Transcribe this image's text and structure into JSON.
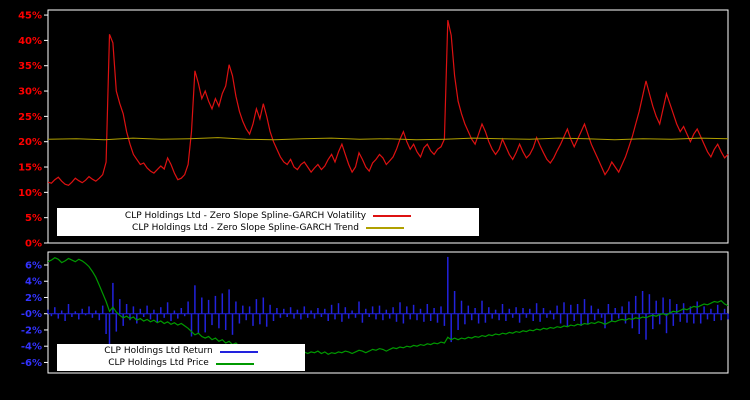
{
  "colors": {
    "background": "#000000",
    "frame": "#ffffff",
    "legend_background": "#ffffff",
    "legend_text": "#000000"
  },
  "chart_data": [
    {
      "type": "line",
      "panel": "top",
      "title": "",
      "xlabel": "",
      "ylabel": "",
      "grid": false,
      "legend_position": "inside-bottom-left",
      "ylim": [
        0,
        46
      ],
      "tick_color": "#ff0000",
      "yticks": {
        "labels": [
          "45%",
          "40%",
          "35%",
          "30%",
          "25%",
          "20%",
          "15%",
          "10%",
          "5%",
          "0%"
        ],
        "values": [
          45,
          40,
          35,
          30,
          25,
          20,
          15,
          10,
          5,
          0
        ]
      },
      "series": [
        {
          "name": "CLP Holdings Ltd - Zero Slope Spline-GARCH Volatility",
          "color": "#dd1111",
          "values": [
            12.0,
            11.8,
            12.5,
            13.0,
            12.2,
            11.6,
            11.4,
            12.0,
            12.8,
            12.3,
            11.9,
            12.4,
            13.1,
            12.6,
            12.2,
            12.8,
            13.5,
            16.0,
            41.2,
            39.5,
            30.0,
            27.5,
            25.5,
            22.0,
            19.5,
            17.5,
            16.5,
            15.5,
            15.8,
            14.8,
            14.2,
            13.8,
            14.5,
            15.2,
            14.6,
            16.8,
            15.5,
            13.8,
            12.5,
            12.8,
            13.5,
            15.5,
            22.0,
            34.0,
            31.5,
            28.5,
            30.0,
            28.0,
            26.5,
            28.5,
            27.0,
            29.5,
            31.0,
            35.2,
            33.0,
            29.0,
            26.0,
            24.0,
            22.5,
            21.5,
            23.5,
            26.5,
            24.5,
            27.5,
            25.0,
            22.0,
            20.0,
            18.5,
            17.0,
            16.0,
            15.5,
            16.5,
            15.0,
            14.5,
            15.5,
            16.0,
            15.0,
            14.0,
            14.8,
            15.5,
            14.5,
            15.2,
            16.5,
            17.5,
            16.0,
            18.0,
            19.5,
            17.5,
            15.5,
            14.0,
            15.0,
            17.8,
            16.5,
            15.0,
            14.2,
            15.8,
            16.5,
            17.5,
            16.8,
            15.5,
            16.2,
            17.0,
            18.5,
            20.5,
            22.0,
            20.0,
            18.5,
            19.5,
            18.0,
            17.0,
            18.8,
            19.5,
            18.2,
            17.5,
            18.5,
            19.0,
            20.5,
            44.0,
            41.0,
            33.0,
            28.0,
            25.5,
            23.5,
            22.0,
            20.5,
            19.5,
            21.5,
            23.5,
            22.0,
            20.0,
            18.5,
            17.5,
            18.5,
            20.5,
            19.0,
            17.5,
            16.5,
            17.8,
            19.5,
            18.0,
            16.8,
            17.5,
            18.8,
            20.8,
            19.2,
            17.8,
            16.5,
            15.8,
            16.8,
            18.2,
            19.5,
            21.0,
            22.5,
            20.5,
            19.0,
            20.5,
            22.0,
            23.5,
            21.5,
            19.5,
            18.0,
            16.5,
            15.0,
            13.5,
            14.5,
            16.0,
            15.0,
            14.0,
            15.5,
            17.0,
            19.0,
            21.0,
            23.5,
            26.0,
            29.0,
            32.0,
            29.5,
            27.0,
            25.0,
            23.5,
            26.5,
            29.5,
            27.5,
            25.5,
            23.5,
            22.0,
            23.0,
            21.5,
            20.0,
            21.5,
            22.5,
            21.0,
            19.5,
            18.0,
            17.0,
            18.5,
            19.5,
            18.0,
            16.8,
            17.5
          ]
        },
        {
          "name": "CLP Holdings Ltd - Zero Slope Spline-GARCH Trend",
          "color": "#b0a000",
          "values": [
            20.5,
            20.6,
            20.4,
            20.7,
            20.5,
            20.6,
            20.8,
            20.5,
            20.4,
            20.6,
            20.7,
            20.5,
            20.6,
            20.4,
            20.5,
            20.7,
            20.6,
            20.5,
            20.7,
            20.6,
            20.4,
            20.6,
            20.5,
            20.7,
            20.6
          ]
        }
      ]
    },
    {
      "type": "bar",
      "panel": "bottom",
      "title": "",
      "xlabel": "",
      "ylabel": "",
      "grid": false,
      "legend_position": "inside-bottom-left",
      "ylim": [
        -7.3,
        7.6
      ],
      "tick_color": "#3333ff",
      "yticks": {
        "labels": [
          "6%",
          "4%",
          "2%",
          "-0%",
          "-2%",
          "-4%",
          "-6%"
        ],
        "values": [
          6,
          4,
          2,
          0,
          -2,
          -4,
          -6
        ]
      },
      "series": [
        {
          "name": "CLP Holdings Ltd Return",
          "render": "bar",
          "color": "#2222dd",
          "values": [
            0.5,
            -0.3,
            0.8,
            -0.6,
            0.4,
            -0.9,
            1.2,
            -0.4,
            0.3,
            -0.7,
            0.6,
            -0.2,
            0.9,
            -0.5,
            0.4,
            -0.8,
            1.0,
            -2.5,
            -5.2,
            3.8,
            -2.2,
            1.8,
            -1.5,
            1.2,
            -0.8,
            0.9,
            -1.2,
            0.6,
            -0.4,
            1.0,
            -0.7,
            0.5,
            -1.1,
            0.8,
            -0.5,
            1.4,
            -0.9,
            0.4,
            -0.6,
            0.7,
            -0.3,
            1.5,
            -2.8,
            3.5,
            -2.5,
            2.0,
            -2.3,
            1.7,
            -1.4,
            2.2,
            -1.8,
            2.5,
            -2.0,
            3.0,
            -2.6,
            1.5,
            -1.2,
            1.0,
            -0.8,
            0.9,
            -1.5,
            1.8,
            -1.3,
            2.0,
            -1.6,
            1.1,
            -0.9,
            0.7,
            -0.5,
            0.6,
            -0.4,
            0.8,
            -0.6,
            0.5,
            -0.7,
            0.9,
            -0.5,
            0.4,
            -0.6,
            0.7,
            -0.4,
            0.6,
            -0.9,
            1.1,
            -0.7,
            1.3,
            -1.0,
            0.8,
            -0.6,
            0.4,
            -0.5,
            1.5,
            -1.1,
            0.6,
            -0.4,
            0.9,
            -0.7,
            1.0,
            -0.8,
            0.5,
            -0.6,
            0.8,
            -1.0,
            1.4,
            -1.2,
            0.9,
            -0.7,
            1.1,
            -0.8,
            0.6,
            -1.0,
            1.2,
            -0.9,
            0.7,
            -1.1,
            0.9,
            -1.5,
            7.0,
            -3.5,
            2.8,
            -2.0,
            1.6,
            -1.3,
            1.0,
            -0.8,
            0.7,
            -1.2,
            1.6,
            -1.1,
            0.8,
            -0.6,
            0.5,
            -0.8,
            1.2,
            -0.9,
            0.6,
            -0.5,
            0.8,
            -1.1,
            0.7,
            -0.5,
            0.6,
            -0.9,
            1.3,
            -1.0,
            0.7,
            -0.5,
            0.4,
            -0.7,
            1.0,
            -1.2,
            1.4,
            -1.6,
            1.1,
            -0.9,
            1.2,
            -1.5,
            1.8,
            -1.3,
            1.0,
            -0.8,
            0.6,
            -0.5,
            -1.8,
            1.2,
            -0.9,
            0.7,
            -0.6,
            0.9,
            -1.2,
            1.5,
            -1.8,
            2.2,
            -2.5,
            2.8,
            -3.2,
            2.4,
            -1.9,
            1.6,
            -1.3,
            2.0,
            -2.4,
            1.8,
            -1.5,
            1.2,
            -1.0,
            1.3,
            -1.1,
            0.9,
            -1.2,
            1.5,
            -1.2,
            0.9,
            -0.7,
            0.6,
            -0.9,
            1.1,
            -0.8,
            0.6,
            -0.7
          ]
        },
        {
          "name": "CLP Holdings Ltd Price",
          "render": "line",
          "color": "#009900",
          "values": [
            6.4,
            6.6,
            6.9,
            6.7,
            6.3,
            6.5,
            6.8,
            6.6,
            6.4,
            6.7,
            6.5,
            6.2,
            5.8,
            5.2,
            4.5,
            3.5,
            2.5,
            1.5,
            0.3,
            0.8,
            0.2,
            -0.2,
            -0.5,
            -0.3,
            -0.6,
            -0.4,
            -0.8,
            -0.6,
            -0.9,
            -0.7,
            -1.0,
            -0.8,
            -1.1,
            -0.9,
            -1.2,
            -1.0,
            -1.3,
            -1.1,
            -1.4,
            -1.2,
            -1.5,
            -1.8,
            -2.2,
            -2.6,
            -2.4,
            -2.8,
            -3.0,
            -2.8,
            -3.2,
            -3.0,
            -3.4,
            -3.2,
            -3.6,
            -3.4,
            -3.8,
            -3.6,
            -4.0,
            -3.8,
            -4.1,
            -3.9,
            -4.2,
            -4.0,
            -4.3,
            -4.1,
            -4.4,
            -4.2,
            -4.5,
            -4.3,
            -4.6,
            -4.4,
            -4.7,
            -4.5,
            -4.6,
            -4.8,
            -4.6,
            -4.7,
            -4.9,
            -4.7,
            -4.8,
            -4.6,
            -4.9,
            -4.7,
            -5.0,
            -4.8,
            -4.9,
            -4.7,
            -4.8,
            -4.6,
            -4.7,
            -4.9,
            -4.7,
            -4.5,
            -4.6,
            -4.8,
            -4.6,
            -4.4,
            -4.5,
            -4.3,
            -4.4,
            -4.6,
            -4.4,
            -4.2,
            -4.3,
            -4.1,
            -4.2,
            -4.0,
            -4.1,
            -3.9,
            -4.0,
            -3.8,
            -3.9,
            -3.7,
            -3.8,
            -3.6,
            -3.7,
            -3.5,
            -3.6,
            -2.9,
            -3.2,
            -3.0,
            -3.2,
            -3.0,
            -3.1,
            -2.9,
            -3.0,
            -2.8,
            -2.9,
            -2.7,
            -2.8,
            -2.6,
            -2.7,
            -2.5,
            -2.6,
            -2.4,
            -2.5,
            -2.3,
            -2.4,
            -2.2,
            -2.3,
            -2.1,
            -2.2,
            -2.0,
            -2.1,
            -1.9,
            -2.0,
            -1.8,
            -1.9,
            -1.7,
            -1.8,
            -1.6,
            -1.7,
            -1.5,
            -1.6,
            -1.4,
            -1.5,
            -1.3,
            -1.4,
            -1.2,
            -1.3,
            -1.1,
            -1.2,
            -1.0,
            -1.1,
            -1.3,
            -1.1,
            -0.9,
            -1.0,
            -0.8,
            -0.7,
            -0.8,
            -0.6,
            -0.7,
            -0.5,
            -0.6,
            -0.4,
            -0.5,
            -0.3,
            -0.2,
            -0.3,
            -0.1,
            0.0,
            -0.2,
            0.1,
            0.3,
            0.2,
            0.4,
            0.6,
            0.5,
            0.7,
            0.9,
            0.8,
            1.0,
            1.2,
            1.1,
            1.3,
            1.5,
            1.4,
            1.6,
            1.2,
            1.0
          ]
        }
      ]
    }
  ]
}
